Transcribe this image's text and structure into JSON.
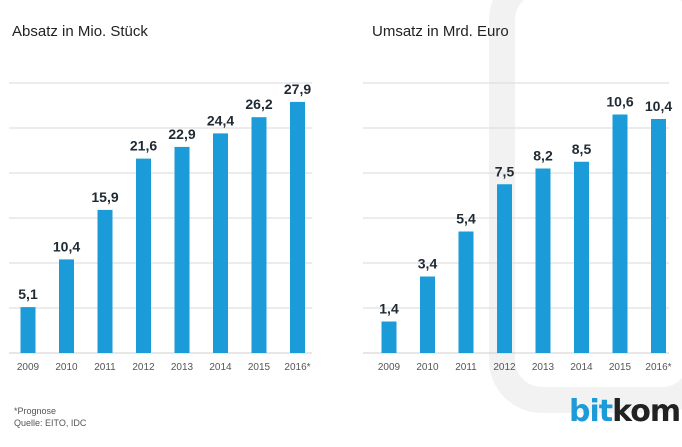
{
  "chart_data": [
    {
      "type": "bar",
      "title": "Absatz in Mio. Stück",
      "categories": [
        "2009",
        "2010",
        "2011",
        "2012",
        "2013",
        "2014",
        "2015",
        "2016*"
      ],
      "values": [
        5.1,
        10.4,
        15.9,
        21.6,
        22.9,
        24.4,
        26.2,
        27.9
      ],
      "value_labels": [
        "5,1",
        "10,4",
        "15,9",
        "21,6",
        "22,9",
        "24,4",
        "26,2",
        "27,9"
      ],
      "ylim": [
        0,
        30
      ],
      "gridlines": [
        5,
        10,
        15,
        20,
        25,
        30
      ],
      "grid": true,
      "color": "#1b9bd7"
    },
    {
      "type": "bar",
      "title": "Umsatz in Mrd. Euro",
      "categories": [
        "2009",
        "2010",
        "2011",
        "2012",
        "2013",
        "2014",
        "2015",
        "2016*"
      ],
      "values": [
        1.4,
        3.4,
        5.4,
        7.5,
        8.2,
        8.5,
        10.6,
        10.4
      ],
      "value_labels": [
        "1,4",
        "3,4",
        "5,4",
        "7,5",
        "8,2",
        "8,5",
        "10,6",
        "10,4"
      ],
      "ylim": [
        0,
        12
      ],
      "gridlines": [
        2,
        4,
        6,
        8,
        10,
        12
      ],
      "grid": true,
      "color": "#1b9bd7"
    }
  ],
  "footnote": {
    "line1": "*Prognose",
    "line2": "Quelle: EITO, IDC"
  },
  "logo": {
    "part1": "bit",
    "part2": "kom"
  }
}
